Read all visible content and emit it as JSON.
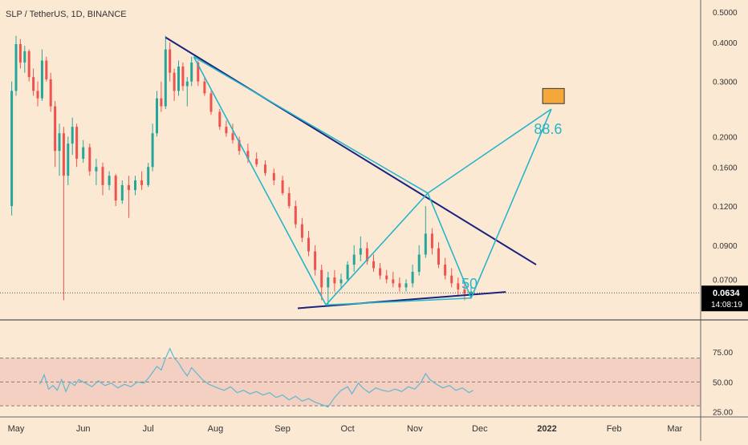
{
  "header": {
    "title": "SLP / TetherUS, 1D, BINANCE"
  },
  "colors": {
    "background": "#fce9d4",
    "up": "#26a69a",
    "down": "#ef5350",
    "trendline": "#1a237e",
    "pattern": "#26b5c9",
    "target_fill": "#f5a83a",
    "rsi_line": "#5fb8d4",
    "rsi_band": "#f3d0c2"
  },
  "chart_data": [
    {
      "type": "candlestick",
      "scale": "log",
      "grid": false,
      "x_ticks": [
        "May",
        "Jun",
        "Jul",
        "Aug",
        "Sep",
        "Oct",
        "Nov",
        "Dec",
        "2022",
        "Feb",
        "Mar"
      ],
      "y_ticks": [
        "0.5000",
        "0.4000",
        "0.3000",
        "0.2000",
        "0.1600",
        "0.1200",
        "0.0900",
        "0.0700"
      ],
      "ylim": [
        0.0535,
        0.54
      ],
      "last_price": {
        "value": 0.0634,
        "label": "0.0634",
        "countdown": "14:08:19"
      },
      "annotations": [
        {
          "label": "50",
          "point": "C"
        },
        {
          "label": "88.6",
          "point": "D"
        }
      ],
      "pattern_points": {
        "X": {
          "date": "2021-07-22",
          "value": 0.36
        },
        "A": {
          "date": "2021-09-21",
          "value": 0.058
        },
        "B": {
          "date": "2021-11-07",
          "value": 0.132
        },
        "C": {
          "date": "2021-11-27",
          "value": 0.061
        },
        "D": {
          "date": "2022-01-03",
          "value": 0.245
        }
      },
      "trendlines": [
        {
          "from": {
            "date": "2021-07-09",
            "value": 0.415
          },
          "to": {
            "date": "2021-12-27",
            "value": 0.078
          }
        },
        {
          "from": {
            "date": "2021-09-08",
            "value": 0.0566
          },
          "to": {
            "date": "2021-12-13",
            "value": 0.0638
          }
        }
      ],
      "target_zone": {
        "from_date": "2021-12-30",
        "to_date": "2022-01-09",
        "low": 0.255,
        "high": 0.285
      },
      "series": [
        {
          "values": [
            [
              "2021-04-29",
              0.12,
              0.3,
              0.112,
              0.28
            ],
            [
              "2021-05-01",
              0.28,
              0.42,
              0.27,
              0.395
            ],
            [
              "2021-05-03",
              0.395,
              0.41,
              0.33,
              0.345
            ],
            [
              "2021-05-05",
              0.345,
              0.39,
              0.32,
              0.375
            ],
            [
              "2021-05-07",
              0.375,
              0.38,
              0.3,
              0.31
            ],
            [
              "2021-05-09",
              0.31,
              0.33,
              0.27,
              0.28
            ],
            [
              "2021-05-11",
              0.28,
              0.3,
              0.25,
              0.265
            ],
            [
              "2021-05-13",
              0.265,
              0.38,
              0.26,
              0.35
            ],
            [
              "2021-05-15",
              0.35,
              0.36,
              0.3,
              0.305
            ],
            [
              "2021-05-17",
              0.305,
              0.32,
              0.24,
              0.25
            ],
            [
              "2021-05-19",
              0.25,
              0.26,
              0.16,
              0.18
            ],
            [
              "2021-05-21",
              0.18,
              0.22,
              0.15,
              0.205
            ],
            [
              "2021-05-23",
              0.205,
              0.215,
              0.06,
              0.15
            ],
            [
              "2021-05-25",
              0.15,
              0.2,
              0.14,
              0.19
            ],
            [
              "2021-05-27",
              0.19,
              0.23,
              0.175,
              0.215
            ],
            [
              "2021-05-29",
              0.215,
              0.22,
              0.16,
              0.17
            ],
            [
              "2021-06-01",
              0.17,
              0.195,
              0.165,
              0.185
            ],
            [
              "2021-06-04",
              0.185,
              0.19,
              0.15,
              0.155
            ],
            [
              "2021-06-07",
              0.155,
              0.17,
              0.14,
              0.16
            ],
            [
              "2021-06-10",
              0.16,
              0.165,
              0.13,
              0.14
            ],
            [
              "2021-06-13",
              0.14,
              0.155,
              0.135,
              0.15
            ],
            [
              "2021-06-16",
              0.15,
              0.152,
              0.12,
              0.125
            ],
            [
              "2021-06-19",
              0.125,
              0.145,
              0.122,
              0.14
            ],
            [
              "2021-06-22",
              0.14,
              0.15,
              0.11,
              0.135
            ],
            [
              "2021-06-25",
              0.135,
              0.15,
              0.13,
              0.145
            ],
            [
              "2021-06-28",
              0.145,
              0.155,
              0.135,
              0.14
            ],
            [
              "2021-07-01",
              0.14,
              0.165,
              0.138,
              0.16
            ],
            [
              "2021-07-03",
              0.16,
              0.22,
              0.155,
              0.205
            ],
            [
              "2021-07-05",
              0.205,
              0.28,
              0.2,
              0.265
            ],
            [
              "2021-07-07",
              0.265,
              0.3,
              0.24,
              0.25
            ],
            [
              "2021-07-09",
              0.25,
              0.42,
              0.245,
              0.38
            ],
            [
              "2021-07-11",
              0.38,
              0.4,
              0.3,
              0.32
            ],
            [
              "2021-07-13",
              0.32,
              0.33,
              0.26,
              0.28
            ],
            [
              "2021-07-15",
              0.28,
              0.35,
              0.27,
              0.335
            ],
            [
              "2021-07-17",
              0.335,
              0.345,
              0.28,
              0.29
            ],
            [
              "2021-07-19",
              0.29,
              0.31,
              0.25,
              0.3
            ],
            [
              "2021-07-21",
              0.3,
              0.36,
              0.29,
              0.345
            ],
            [
              "2021-07-24",
              0.345,
              0.35,
              0.29,
              0.3
            ],
            [
              "2021-07-27",
              0.3,
              0.31,
              0.27,
              0.275
            ],
            [
              "2021-07-30",
              0.275,
              0.28,
              0.235,
              0.24
            ],
            [
              "2021-08-03",
              0.24,
              0.245,
              0.21,
              0.215
            ],
            [
              "2021-08-06",
              0.215,
              0.225,
              0.2,
              0.205
            ],
            [
              "2021-08-09",
              0.205,
              0.22,
              0.19,
              0.195
            ],
            [
              "2021-08-12",
              0.195,
              0.2,
              0.175,
              0.18
            ],
            [
              "2021-08-16",
              0.18,
              0.19,
              0.165,
              0.17
            ],
            [
              "2021-08-20",
              0.17,
              0.178,
              0.16,
              0.163
            ],
            [
              "2021-08-24",
              0.163,
              0.168,
              0.15,
              0.153
            ],
            [
              "2021-08-28",
              0.153,
              0.158,
              0.14,
              0.145
            ],
            [
              "2021-09-01",
              0.145,
              0.15,
              0.13,
              0.132
            ],
            [
              "2021-09-04",
              0.132,
              0.138,
              0.118,
              0.12
            ],
            [
              "2021-09-07",
              0.12,
              0.125,
              0.102,
              0.105
            ],
            [
              "2021-09-10",
              0.105,
              0.11,
              0.092,
              0.095
            ],
            [
              "2021-09-13",
              0.095,
              0.1,
              0.083,
              0.086
            ],
            [
              "2021-09-16",
              0.086,
              0.09,
              0.072,
              0.075
            ],
            [
              "2021-09-19",
              0.075,
              0.078,
              0.06,
              0.066
            ],
            [
              "2021-09-22",
              0.066,
              0.074,
              0.058,
              0.071
            ],
            [
              "2021-09-25",
              0.071,
              0.075,
              0.064,
              0.068
            ],
            [
              "2021-09-28",
              0.068,
              0.073,
              0.065,
              0.07
            ],
            [
              "2021-10-01",
              0.07,
              0.08,
              0.069,
              0.078
            ],
            [
              "2021-10-04",
              0.078,
              0.09,
              0.074,
              0.084
            ],
            [
              "2021-10-07",
              0.084,
              0.096,
              0.08,
              0.088
            ],
            [
              "2021-10-10",
              0.088,
              0.092,
              0.078,
              0.08
            ],
            [
              "2021-10-13",
              0.08,
              0.084,
              0.074,
              0.076
            ],
            [
              "2021-10-16",
              0.076,
              0.079,
              0.07,
              0.072
            ],
            [
              "2021-10-19",
              0.072,
              0.075,
              0.068,
              0.07
            ],
            [
              "2021-10-22",
              0.07,
              0.074,
              0.066,
              0.068
            ],
            [
              "2021-10-25",
              0.068,
              0.071,
              0.064,
              0.066
            ],
            [
              "2021-10-28",
              0.066,
              0.07,
              0.064,
              0.068
            ],
            [
              "2021-10-31",
              0.068,
              0.078,
              0.066,
              0.074
            ],
            [
              "2021-11-03",
              0.074,
              0.09,
              0.072,
              0.084
            ],
            [
              "2021-11-06",
              0.084,
              0.12,
              0.082,
              0.098
            ],
            [
              "2021-11-09",
              0.098,
              0.102,
              0.084,
              0.088
            ],
            [
              "2021-11-12",
              0.088,
              0.092,
              0.076,
              0.078
            ],
            [
              "2021-11-15",
              0.078,
              0.082,
              0.07,
              0.072
            ],
            [
              "2021-11-18",
              0.072,
              0.076,
              0.066,
              0.068
            ],
            [
              "2021-11-21",
              0.068,
              0.071,
              0.062,
              0.065
            ],
            [
              "2021-11-24",
              0.065,
              0.068,
              0.06,
              0.063
            ],
            [
              "2021-11-27",
              0.063,
              0.066,
              0.061,
              0.064
            ]
          ]
        }
      ]
    },
    {
      "type": "line",
      "ylim": [
        22,
        100
      ],
      "y_ticks": [
        "75.00",
        "50.00",
        "25.00"
      ],
      "band": [
        30,
        70
      ],
      "series": [
        {
          "values": [
            [
              "2021-05-12",
              48
            ],
            [
              "2021-05-14",
              56
            ],
            [
              "2021-05-16",
              44
            ],
            [
              "2021-05-18",
              47
            ],
            [
              "2021-05-20",
              43
            ],
            [
              "2021-05-22",
              52
            ],
            [
              "2021-05-24",
              42
            ],
            [
              "2021-05-26",
              50
            ],
            [
              "2021-05-28",
              47
            ],
            [
              "2021-05-30",
              52
            ],
            [
              "2021-06-02",
              49
            ],
            [
              "2021-06-05",
              46
            ],
            [
              "2021-06-08",
              51
            ],
            [
              "2021-06-11",
              47
            ],
            [
              "2021-06-14",
              49
            ],
            [
              "2021-06-17",
              45
            ],
            [
              "2021-06-20",
              48
            ],
            [
              "2021-06-23",
              46
            ],
            [
              "2021-06-26",
              50
            ],
            [
              "2021-06-29",
              49
            ],
            [
              "2021-07-01",
              53
            ],
            [
              "2021-07-03",
              58
            ],
            [
              "2021-07-05",
              63
            ],
            [
              "2021-07-07",
              60
            ],
            [
              "2021-07-09",
              70
            ],
            [
              "2021-07-11",
              78
            ],
            [
              "2021-07-13",
              70
            ],
            [
              "2021-07-15",
              66
            ],
            [
              "2021-07-17",
              60
            ],
            [
              "2021-07-19",
              55
            ],
            [
              "2021-07-21",
              62
            ],
            [
              "2021-07-23",
              58
            ],
            [
              "2021-07-26",
              52
            ],
            [
              "2021-07-29",
              48
            ],
            [
              "2021-08-02",
              45
            ],
            [
              "2021-08-05",
              43
            ],
            [
              "2021-08-08",
              46
            ],
            [
              "2021-08-11",
              41
            ],
            [
              "2021-08-14",
              43
            ],
            [
              "2021-08-17",
              40
            ],
            [
              "2021-08-20",
              42
            ],
            [
              "2021-08-23",
              39
            ],
            [
              "2021-08-26",
              41
            ],
            [
              "2021-08-29",
              37
            ],
            [
              "2021-09-01",
              39
            ],
            [
              "2021-09-04",
              35
            ],
            [
              "2021-09-07",
              38
            ],
            [
              "2021-09-10",
              34
            ],
            [
              "2021-09-13",
              36
            ],
            [
              "2021-09-16",
              33
            ],
            [
              "2021-09-19",
              31
            ],
            [
              "2021-09-22",
              29
            ],
            [
              "2021-09-25",
              37
            ],
            [
              "2021-09-28",
              43
            ],
            [
              "2021-10-01",
              46
            ],
            [
              "2021-10-03",
              40
            ],
            [
              "2021-10-06",
              49
            ],
            [
              "2021-10-08",
              45
            ],
            [
              "2021-10-11",
              41
            ],
            [
              "2021-10-14",
              45
            ],
            [
              "2021-10-17",
              43
            ],
            [
              "2021-10-20",
              42
            ],
            [
              "2021-10-23",
              44
            ],
            [
              "2021-10-26",
              42
            ],
            [
              "2021-10-29",
              46
            ],
            [
              "2021-11-01",
              44
            ],
            [
              "2021-11-04",
              50
            ],
            [
              "2021-11-06",
              57
            ],
            [
              "2021-11-08",
              52
            ],
            [
              "2021-11-11",
              48
            ],
            [
              "2021-11-14",
              45
            ],
            [
              "2021-11-17",
              47
            ],
            [
              "2021-11-20",
              43
            ],
            [
              "2021-11-23",
              45
            ],
            [
              "2021-11-26",
              41
            ],
            [
              "2021-11-28",
              43
            ]
          ]
        }
      ]
    }
  ]
}
